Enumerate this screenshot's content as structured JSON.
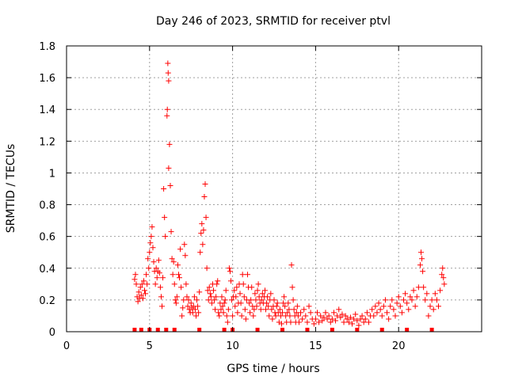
{
  "chart_data": {
    "type": "scatter",
    "title": "Day 246 of 2023, SRMTID for receiver ptvl",
    "xlabel": "GPS time / hours",
    "ylabel": "SRMTID / TECUs",
    "xlim": [
      0,
      25
    ],
    "ylim": [
      0,
      1.8
    ],
    "xticks": [
      0,
      5,
      10,
      15,
      20
    ],
    "xtick_labels": [
      "0",
      "5",
      "10",
      "15",
      "20"
    ],
    "yticks": [
      0,
      0.2,
      0.4,
      0.6,
      0.8,
      1.0,
      1.2,
      1.4,
      1.6,
      1.8
    ],
    "ytick_labels": [
      "0",
      "0.2",
      "0.4",
      "0.6",
      "0.8",
      "1",
      "1.2",
      "1.4",
      "1.6",
      "1.8"
    ],
    "grid": true,
    "marker": "plus",
    "color": "#ff0000",
    "series": [
      {
        "name": "SRMTID",
        "points": [
          [
            4.1,
            0.33
          ],
          [
            4.15,
            0.36
          ],
          [
            4.2,
            0.3
          ],
          [
            4.25,
            0.22
          ],
          [
            4.3,
            0.19
          ],
          [
            4.35,
            0.25
          ],
          [
            4.4,
            0.21
          ],
          [
            4.45,
            0.28
          ],
          [
            4.5,
            0.23
          ],
          [
            4.55,
            0.3
          ],
          [
            4.6,
            0.21
          ],
          [
            4.65,
            0.32
          ],
          [
            4.7,
            0.26
          ],
          [
            4.75,
            0.24
          ],
          [
            4.8,
            0.36
          ],
          [
            4.85,
            0.3
          ],
          [
            4.9,
            0.46
          ],
          [
            4.95,
            0.4
          ],
          [
            5.0,
            0.5
          ],
          [
            5.05,
            0.56
          ],
          [
            5.1,
            0.6
          ],
          [
            5.15,
            0.66
          ],
          [
            5.2,
            0.53
          ],
          [
            5.25,
            0.44
          ],
          [
            5.3,
            0.38
          ],
          [
            5.35,
            0.3
          ],
          [
            5.4,
            0.4
          ],
          [
            5.45,
            0.34
          ],
          [
            5.5,
            0.38
          ],
          [
            5.55,
            0.45
          ],
          [
            5.6,
            0.37
          ],
          [
            5.65,
            0.28
          ],
          [
            5.7,
            0.22
          ],
          [
            5.75,
            0.16
          ],
          [
            5.8,
            0.34
          ],
          [
            5.85,
            0.9
          ],
          [
            5.9,
            0.72
          ],
          [
            5.95,
            0.6
          ],
          [
            6.05,
            1.36
          ],
          [
            6.07,
            1.4
          ],
          [
            6.1,
            1.69
          ],
          [
            6.12,
            1.63
          ],
          [
            6.15,
            1.58
          ],
          [
            6.15,
            1.03
          ],
          [
            6.2,
            1.18
          ],
          [
            6.25,
            0.92
          ],
          [
            6.3,
            0.63
          ],
          [
            6.35,
            0.46
          ],
          [
            6.4,
            0.36
          ],
          [
            6.45,
            0.44
          ],
          [
            6.5,
            0.3
          ],
          [
            6.55,
            0.2
          ],
          [
            6.6,
            0.18
          ],
          [
            6.65,
            0.22
          ],
          [
            6.7,
            0.42
          ],
          [
            6.75,
            0.36
          ],
          [
            6.8,
            0.34
          ],
          [
            6.85,
            0.52
          ],
          [
            6.9,
            0.28
          ],
          [
            6.95,
            0.1
          ],
          [
            7.0,
            0.15
          ],
          [
            7.05,
            0.2
          ],
          [
            7.1,
            0.55
          ],
          [
            7.15,
            0.48
          ],
          [
            7.2,
            0.3
          ],
          [
            7.25,
            0.22
          ],
          [
            7.3,
            0.16
          ],
          [
            7.35,
            0.2
          ],
          [
            7.4,
            0.14
          ],
          [
            7.45,
            0.12
          ],
          [
            7.5,
            0.18
          ],
          [
            7.55,
            0.15
          ],
          [
            7.6,
            0.12
          ],
          [
            7.65,
            0.16
          ],
          [
            7.7,
            0.22
          ],
          [
            7.75,
            0.14
          ],
          [
            7.8,
            0.1
          ],
          [
            7.85,
            0.2
          ],
          [
            7.9,
            0.16
          ],
          [
            7.95,
            0.12
          ],
          [
            8.0,
            0.25
          ],
          [
            8.05,
            0.5
          ],
          [
            8.1,
            0.62
          ],
          [
            8.15,
            0.68
          ],
          [
            8.2,
            0.55
          ],
          [
            8.25,
            0.64
          ],
          [
            8.3,
            0.85
          ],
          [
            8.35,
            0.93
          ],
          [
            8.4,
            0.72
          ],
          [
            8.45,
            0.4
          ],
          [
            8.5,
            0.26
          ],
          [
            8.55,
            0.2
          ],
          [
            8.6,
            0.28
          ],
          [
            8.65,
            0.24
          ],
          [
            8.7,
            0.22
          ],
          [
            8.75,
            0.18
          ],
          [
            8.8,
            0.3
          ],
          [
            8.85,
            0.26
          ],
          [
            8.9,
            0.2
          ],
          [
            8.95,
            0.14
          ],
          [
            9.0,
            0.22
          ],
          [
            9.05,
            0.3
          ],
          [
            9.1,
            0.32
          ],
          [
            9.15,
            0.12
          ],
          [
            9.2,
            0.1
          ],
          [
            9.25,
            0.18
          ],
          [
            9.3,
            0.14
          ],
          [
            9.35,
            0.22
          ],
          [
            9.4,
            0.16
          ],
          [
            9.45,
            0.12
          ],
          [
            9.5,
            0.18
          ],
          [
            9.55,
            0.2
          ],
          [
            9.6,
            0.26
          ],
          [
            9.65,
            0.1
          ],
          [
            9.7,
            0.06
          ],
          [
            9.75,
            0.14
          ],
          [
            9.8,
            0.4
          ],
          [
            9.85,
            0.38
          ],
          [
            9.9,
            0.32
          ],
          [
            9.95,
            0.2
          ],
          [
            10.0,
            0.1
          ],
          [
            10.05,
            0.22
          ],
          [
            10.1,
            0.26
          ],
          [
            10.15,
            0.16
          ],
          [
            10.2,
            0.22
          ],
          [
            10.25,
            0.28
          ],
          [
            10.3,
            0.12
          ],
          [
            10.35,
            0.18
          ],
          [
            10.4,
            0.3
          ],
          [
            10.45,
            0.24
          ],
          [
            10.5,
            0.18
          ],
          [
            10.55,
            0.1
          ],
          [
            10.6,
            0.36
          ],
          [
            10.65,
            0.3
          ],
          [
            10.7,
            0.22
          ],
          [
            10.75,
            0.14
          ],
          [
            10.8,
            0.08
          ],
          [
            10.85,
            0.2
          ],
          [
            10.9,
            0.36
          ],
          [
            10.95,
            0.28
          ],
          [
            11.0,
            0.18
          ],
          [
            11.05,
            0.12
          ],
          [
            11.1,
            0.2
          ],
          [
            11.15,
            0.28
          ],
          [
            11.2,
            0.16
          ],
          [
            11.25,
            0.1
          ],
          [
            11.3,
            0.14
          ],
          [
            11.35,
            0.24
          ],
          [
            11.4,
            0.2
          ],
          [
            11.45,
            0.16
          ],
          [
            11.5,
            0.26
          ],
          [
            11.55,
            0.3
          ],
          [
            11.6,
            0.22
          ],
          [
            11.65,
            0.18
          ],
          [
            11.7,
            0.14
          ],
          [
            11.75,
            0.2
          ],
          [
            11.8,
            0.24
          ],
          [
            11.85,
            0.18
          ],
          [
            11.9,
            0.22
          ],
          [
            11.95,
            0.26
          ],
          [
            12.0,
            0.14
          ],
          [
            12.05,
            0.18
          ],
          [
            12.1,
            0.22
          ],
          [
            12.15,
            0.16
          ],
          [
            12.2,
            0.1
          ],
          [
            12.25,
            0.2
          ],
          [
            12.3,
            0.24
          ],
          [
            12.35,
            0.14
          ],
          [
            12.4,
            0.08
          ],
          [
            12.45,
            0.16
          ],
          [
            12.5,
            0.2
          ],
          [
            12.55,
            0.12
          ],
          [
            12.6,
            0.1
          ],
          [
            12.65,
            0.16
          ],
          [
            12.7,
            0.18
          ],
          [
            12.75,
            0.12
          ],
          [
            12.8,
            0.06
          ],
          [
            12.85,
            0.14
          ],
          [
            12.9,
            0.1
          ],
          [
            12.95,
            0.05
          ],
          [
            13.0,
            0.12
          ],
          [
            13.05,
            0.18
          ],
          [
            13.1,
            0.22
          ],
          [
            13.15,
            0.16
          ],
          [
            13.2,
            0.1
          ],
          [
            13.25,
            0.06
          ],
          [
            13.3,
            0.12
          ],
          [
            13.35,
            0.18
          ],
          [
            13.4,
            0.14
          ],
          [
            13.45,
            0.1
          ],
          [
            13.5,
            0.06
          ],
          [
            13.55,
            0.42
          ],
          [
            13.6,
            0.28
          ],
          [
            13.65,
            0.2
          ],
          [
            13.7,
            0.14
          ],
          [
            13.75,
            0.1
          ],
          [
            13.8,
            0.06
          ],
          [
            13.85,
            0.12
          ],
          [
            13.9,
            0.16
          ],
          [
            13.95,
            0.1
          ],
          [
            14.0,
            0.06
          ],
          [
            14.1,
            0.12
          ],
          [
            14.2,
            0.08
          ],
          [
            14.3,
            0.14
          ],
          [
            14.4,
            0.1
          ],
          [
            14.5,
            0.06
          ],
          [
            14.6,
            0.16
          ],
          [
            14.7,
            0.12
          ],
          [
            14.8,
            0.08
          ],
          [
            14.9,
            0.05
          ],
          [
            15.0,
            0.08
          ],
          [
            15.1,
            0.12
          ],
          [
            15.2,
            0.06
          ],
          [
            15.3,
            0.1
          ],
          [
            15.4,
            0.07
          ],
          [
            15.5,
            0.09
          ],
          [
            15.6,
            0.12
          ],
          [
            15.7,
            0.08
          ],
          [
            15.8,
            0.1
          ],
          [
            15.9,
            0.06
          ],
          [
            16.0,
            0.08
          ],
          [
            16.1,
            0.12
          ],
          [
            16.2,
            0.07
          ],
          [
            16.3,
            0.1
          ],
          [
            16.4,
            0.14
          ],
          [
            16.5,
            0.09
          ],
          [
            16.6,
            0.11
          ],
          [
            16.7,
            0.06
          ],
          [
            16.8,
            0.1
          ],
          [
            16.9,
            0.08
          ],
          [
            17.0,
            0.06
          ],
          [
            17.1,
            0.09
          ],
          [
            17.2,
            0.05
          ],
          [
            17.3,
            0.08
          ],
          [
            17.4,
            0.11
          ],
          [
            17.5,
            0.07
          ],
          [
            17.6,
            0.04
          ],
          [
            17.7,
            0.08
          ],
          [
            17.8,
            0.1
          ],
          [
            17.9,
            0.06
          ],
          [
            18.0,
            0.08
          ],
          [
            18.1,
            0.12
          ],
          [
            18.2,
            0.06
          ],
          [
            18.3,
            0.1
          ],
          [
            18.4,
            0.14
          ],
          [
            18.5,
            0.1
          ],
          [
            18.6,
            0.16
          ],
          [
            18.7,
            0.12
          ],
          [
            18.8,
            0.18
          ],
          [
            18.9,
            0.14
          ],
          [
            19.0,
            0.1
          ],
          [
            19.1,
            0.16
          ],
          [
            19.2,
            0.2
          ],
          [
            19.3,
            0.12
          ],
          [
            19.4,
            0.08
          ],
          [
            19.5,
            0.16
          ],
          [
            19.6,
            0.2
          ],
          [
            19.7,
            0.14
          ],
          [
            19.8,
            0.1
          ],
          [
            19.9,
            0.18
          ],
          [
            20.0,
            0.22
          ],
          [
            20.1,
            0.16
          ],
          [
            20.2,
            0.12
          ],
          [
            20.3,
            0.2
          ],
          [
            20.4,
            0.24
          ],
          [
            20.5,
            0.18
          ],
          [
            20.6,
            0.14
          ],
          [
            20.7,
            0.22
          ],
          [
            20.8,
            0.2
          ],
          [
            20.9,
            0.26
          ],
          [
            21.0,
            0.16
          ],
          [
            21.1,
            0.22
          ],
          [
            21.2,
            0.28
          ],
          [
            21.3,
            0.42
          ],
          [
            21.35,
            0.5
          ],
          [
            21.4,
            0.46
          ],
          [
            21.45,
            0.38
          ],
          [
            21.5,
            0.28
          ],
          [
            21.6,
            0.2
          ],
          [
            21.7,
            0.24
          ],
          [
            21.8,
            0.1
          ],
          [
            21.9,
            0.16
          ],
          [
            22.0,
            0.2
          ],
          [
            22.1,
            0.14
          ],
          [
            22.2,
            0.24
          ],
          [
            22.3,
            0.2
          ],
          [
            22.4,
            0.16
          ],
          [
            22.5,
            0.26
          ],
          [
            22.6,
            0.36
          ],
          [
            22.65,
            0.4
          ],
          [
            22.7,
            0.34
          ],
          [
            22.75,
            0.3
          ]
        ]
      }
    ],
    "baseline_markers_x": [
      4.1,
      4.5,
      5.0,
      5.5,
      6.0,
      6.5,
      8.0,
      9.5,
      10.0,
      11.5,
      13.0,
      14.5,
      16.0,
      17.5,
      19.0,
      20.5,
      22.0
    ]
  }
}
